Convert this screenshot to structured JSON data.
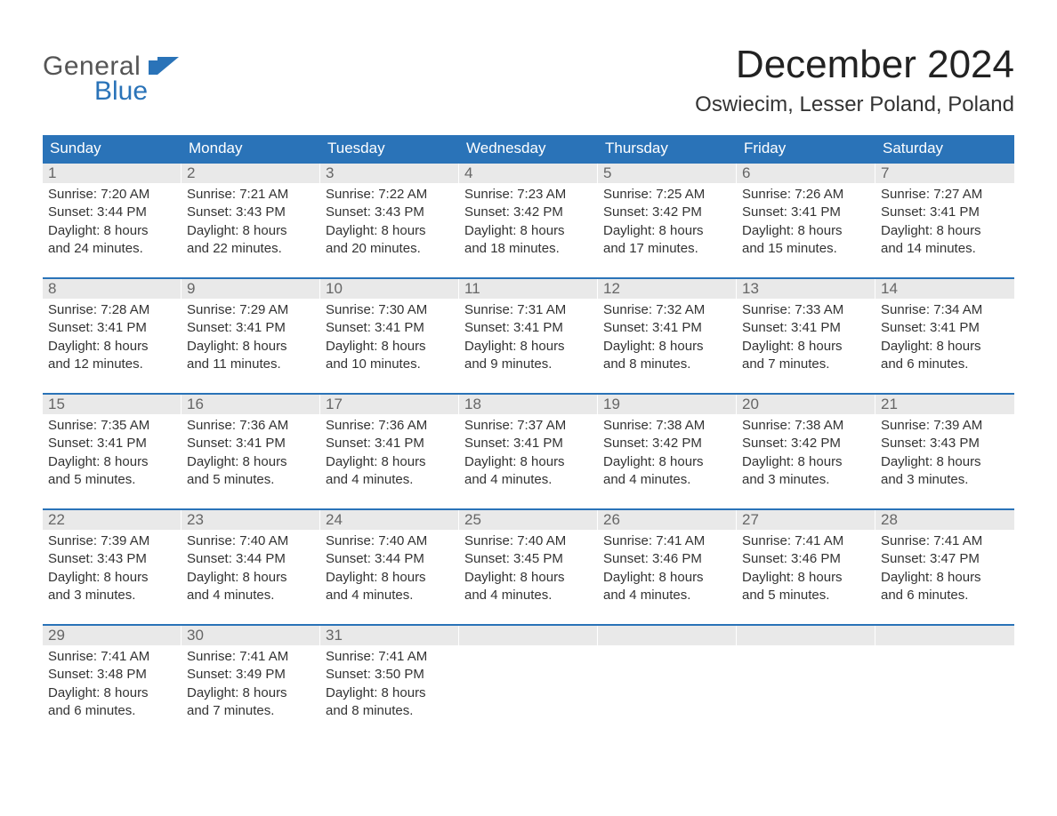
{
  "brand": {
    "word1": "General",
    "word2": "Blue",
    "accent_color": "#2a73b8",
    "text_color": "#555555"
  },
  "title": "December 2024",
  "location": "Oswiecim, Lesser Poland, Poland",
  "colors": {
    "header_bg": "#2a73b8",
    "header_text": "#ffffff",
    "daynum_bg": "#e9e9e9",
    "daynum_text": "#666666",
    "body_text": "#333333",
    "rule": "#2a73b8",
    "page_bg": "#ffffff"
  },
  "weekdays": [
    "Sunday",
    "Monday",
    "Tuesday",
    "Wednesday",
    "Thursday",
    "Friday",
    "Saturday"
  ],
  "weeks": [
    [
      {
        "n": "1",
        "sunrise": "Sunrise: 7:20 AM",
        "sunset": "Sunset: 3:44 PM",
        "d1": "Daylight: 8 hours",
        "d2": "and 24 minutes."
      },
      {
        "n": "2",
        "sunrise": "Sunrise: 7:21 AM",
        "sunset": "Sunset: 3:43 PM",
        "d1": "Daylight: 8 hours",
        "d2": "and 22 minutes."
      },
      {
        "n": "3",
        "sunrise": "Sunrise: 7:22 AM",
        "sunset": "Sunset: 3:43 PM",
        "d1": "Daylight: 8 hours",
        "d2": "and 20 minutes."
      },
      {
        "n": "4",
        "sunrise": "Sunrise: 7:23 AM",
        "sunset": "Sunset: 3:42 PM",
        "d1": "Daylight: 8 hours",
        "d2": "and 18 minutes."
      },
      {
        "n": "5",
        "sunrise": "Sunrise: 7:25 AM",
        "sunset": "Sunset: 3:42 PM",
        "d1": "Daylight: 8 hours",
        "d2": "and 17 minutes."
      },
      {
        "n": "6",
        "sunrise": "Sunrise: 7:26 AM",
        "sunset": "Sunset: 3:41 PM",
        "d1": "Daylight: 8 hours",
        "d2": "and 15 minutes."
      },
      {
        "n": "7",
        "sunrise": "Sunrise: 7:27 AM",
        "sunset": "Sunset: 3:41 PM",
        "d1": "Daylight: 8 hours",
        "d2": "and 14 minutes."
      }
    ],
    [
      {
        "n": "8",
        "sunrise": "Sunrise: 7:28 AM",
        "sunset": "Sunset: 3:41 PM",
        "d1": "Daylight: 8 hours",
        "d2": "and 12 minutes."
      },
      {
        "n": "9",
        "sunrise": "Sunrise: 7:29 AM",
        "sunset": "Sunset: 3:41 PM",
        "d1": "Daylight: 8 hours",
        "d2": "and 11 minutes."
      },
      {
        "n": "10",
        "sunrise": "Sunrise: 7:30 AM",
        "sunset": "Sunset: 3:41 PM",
        "d1": "Daylight: 8 hours",
        "d2": "and 10 minutes."
      },
      {
        "n": "11",
        "sunrise": "Sunrise: 7:31 AM",
        "sunset": "Sunset: 3:41 PM",
        "d1": "Daylight: 8 hours",
        "d2": "and 9 minutes."
      },
      {
        "n": "12",
        "sunrise": "Sunrise: 7:32 AM",
        "sunset": "Sunset: 3:41 PM",
        "d1": "Daylight: 8 hours",
        "d2": "and 8 minutes."
      },
      {
        "n": "13",
        "sunrise": "Sunrise: 7:33 AM",
        "sunset": "Sunset: 3:41 PM",
        "d1": "Daylight: 8 hours",
        "d2": "and 7 minutes."
      },
      {
        "n": "14",
        "sunrise": "Sunrise: 7:34 AM",
        "sunset": "Sunset: 3:41 PM",
        "d1": "Daylight: 8 hours",
        "d2": "and 6 minutes."
      }
    ],
    [
      {
        "n": "15",
        "sunrise": "Sunrise: 7:35 AM",
        "sunset": "Sunset: 3:41 PM",
        "d1": "Daylight: 8 hours",
        "d2": "and 5 minutes."
      },
      {
        "n": "16",
        "sunrise": "Sunrise: 7:36 AM",
        "sunset": "Sunset: 3:41 PM",
        "d1": "Daylight: 8 hours",
        "d2": "and 5 minutes."
      },
      {
        "n": "17",
        "sunrise": "Sunrise: 7:36 AM",
        "sunset": "Sunset: 3:41 PM",
        "d1": "Daylight: 8 hours",
        "d2": "and 4 minutes."
      },
      {
        "n": "18",
        "sunrise": "Sunrise: 7:37 AM",
        "sunset": "Sunset: 3:41 PM",
        "d1": "Daylight: 8 hours",
        "d2": "and 4 minutes."
      },
      {
        "n": "19",
        "sunrise": "Sunrise: 7:38 AM",
        "sunset": "Sunset: 3:42 PM",
        "d1": "Daylight: 8 hours",
        "d2": "and 4 minutes."
      },
      {
        "n": "20",
        "sunrise": "Sunrise: 7:38 AM",
        "sunset": "Sunset: 3:42 PM",
        "d1": "Daylight: 8 hours",
        "d2": "and 3 minutes."
      },
      {
        "n": "21",
        "sunrise": "Sunrise: 7:39 AM",
        "sunset": "Sunset: 3:43 PM",
        "d1": "Daylight: 8 hours",
        "d2": "and 3 minutes."
      }
    ],
    [
      {
        "n": "22",
        "sunrise": "Sunrise: 7:39 AM",
        "sunset": "Sunset: 3:43 PM",
        "d1": "Daylight: 8 hours",
        "d2": "and 3 minutes."
      },
      {
        "n": "23",
        "sunrise": "Sunrise: 7:40 AM",
        "sunset": "Sunset: 3:44 PM",
        "d1": "Daylight: 8 hours",
        "d2": "and 4 minutes."
      },
      {
        "n": "24",
        "sunrise": "Sunrise: 7:40 AM",
        "sunset": "Sunset: 3:44 PM",
        "d1": "Daylight: 8 hours",
        "d2": "and 4 minutes."
      },
      {
        "n": "25",
        "sunrise": "Sunrise: 7:40 AM",
        "sunset": "Sunset: 3:45 PM",
        "d1": "Daylight: 8 hours",
        "d2": "and 4 minutes."
      },
      {
        "n": "26",
        "sunrise": "Sunrise: 7:41 AM",
        "sunset": "Sunset: 3:46 PM",
        "d1": "Daylight: 8 hours",
        "d2": "and 4 minutes."
      },
      {
        "n": "27",
        "sunrise": "Sunrise: 7:41 AM",
        "sunset": "Sunset: 3:46 PM",
        "d1": "Daylight: 8 hours",
        "d2": "and 5 minutes."
      },
      {
        "n": "28",
        "sunrise": "Sunrise: 7:41 AM",
        "sunset": "Sunset: 3:47 PM",
        "d1": "Daylight: 8 hours",
        "d2": "and 6 minutes."
      }
    ],
    [
      {
        "n": "29",
        "sunrise": "Sunrise: 7:41 AM",
        "sunset": "Sunset: 3:48 PM",
        "d1": "Daylight: 8 hours",
        "d2": "and 6 minutes."
      },
      {
        "n": "30",
        "sunrise": "Sunrise: 7:41 AM",
        "sunset": "Sunset: 3:49 PM",
        "d1": "Daylight: 8 hours",
        "d2": "and 7 minutes."
      },
      {
        "n": "31",
        "sunrise": "Sunrise: 7:41 AM",
        "sunset": "Sunset: 3:50 PM",
        "d1": "Daylight: 8 hours",
        "d2": "and 8 minutes."
      },
      {
        "n": "",
        "sunrise": "",
        "sunset": "",
        "d1": "",
        "d2": ""
      },
      {
        "n": "",
        "sunrise": "",
        "sunset": "",
        "d1": "",
        "d2": ""
      },
      {
        "n": "",
        "sunrise": "",
        "sunset": "",
        "d1": "",
        "d2": ""
      },
      {
        "n": "",
        "sunrise": "",
        "sunset": "",
        "d1": "",
        "d2": ""
      }
    ]
  ]
}
